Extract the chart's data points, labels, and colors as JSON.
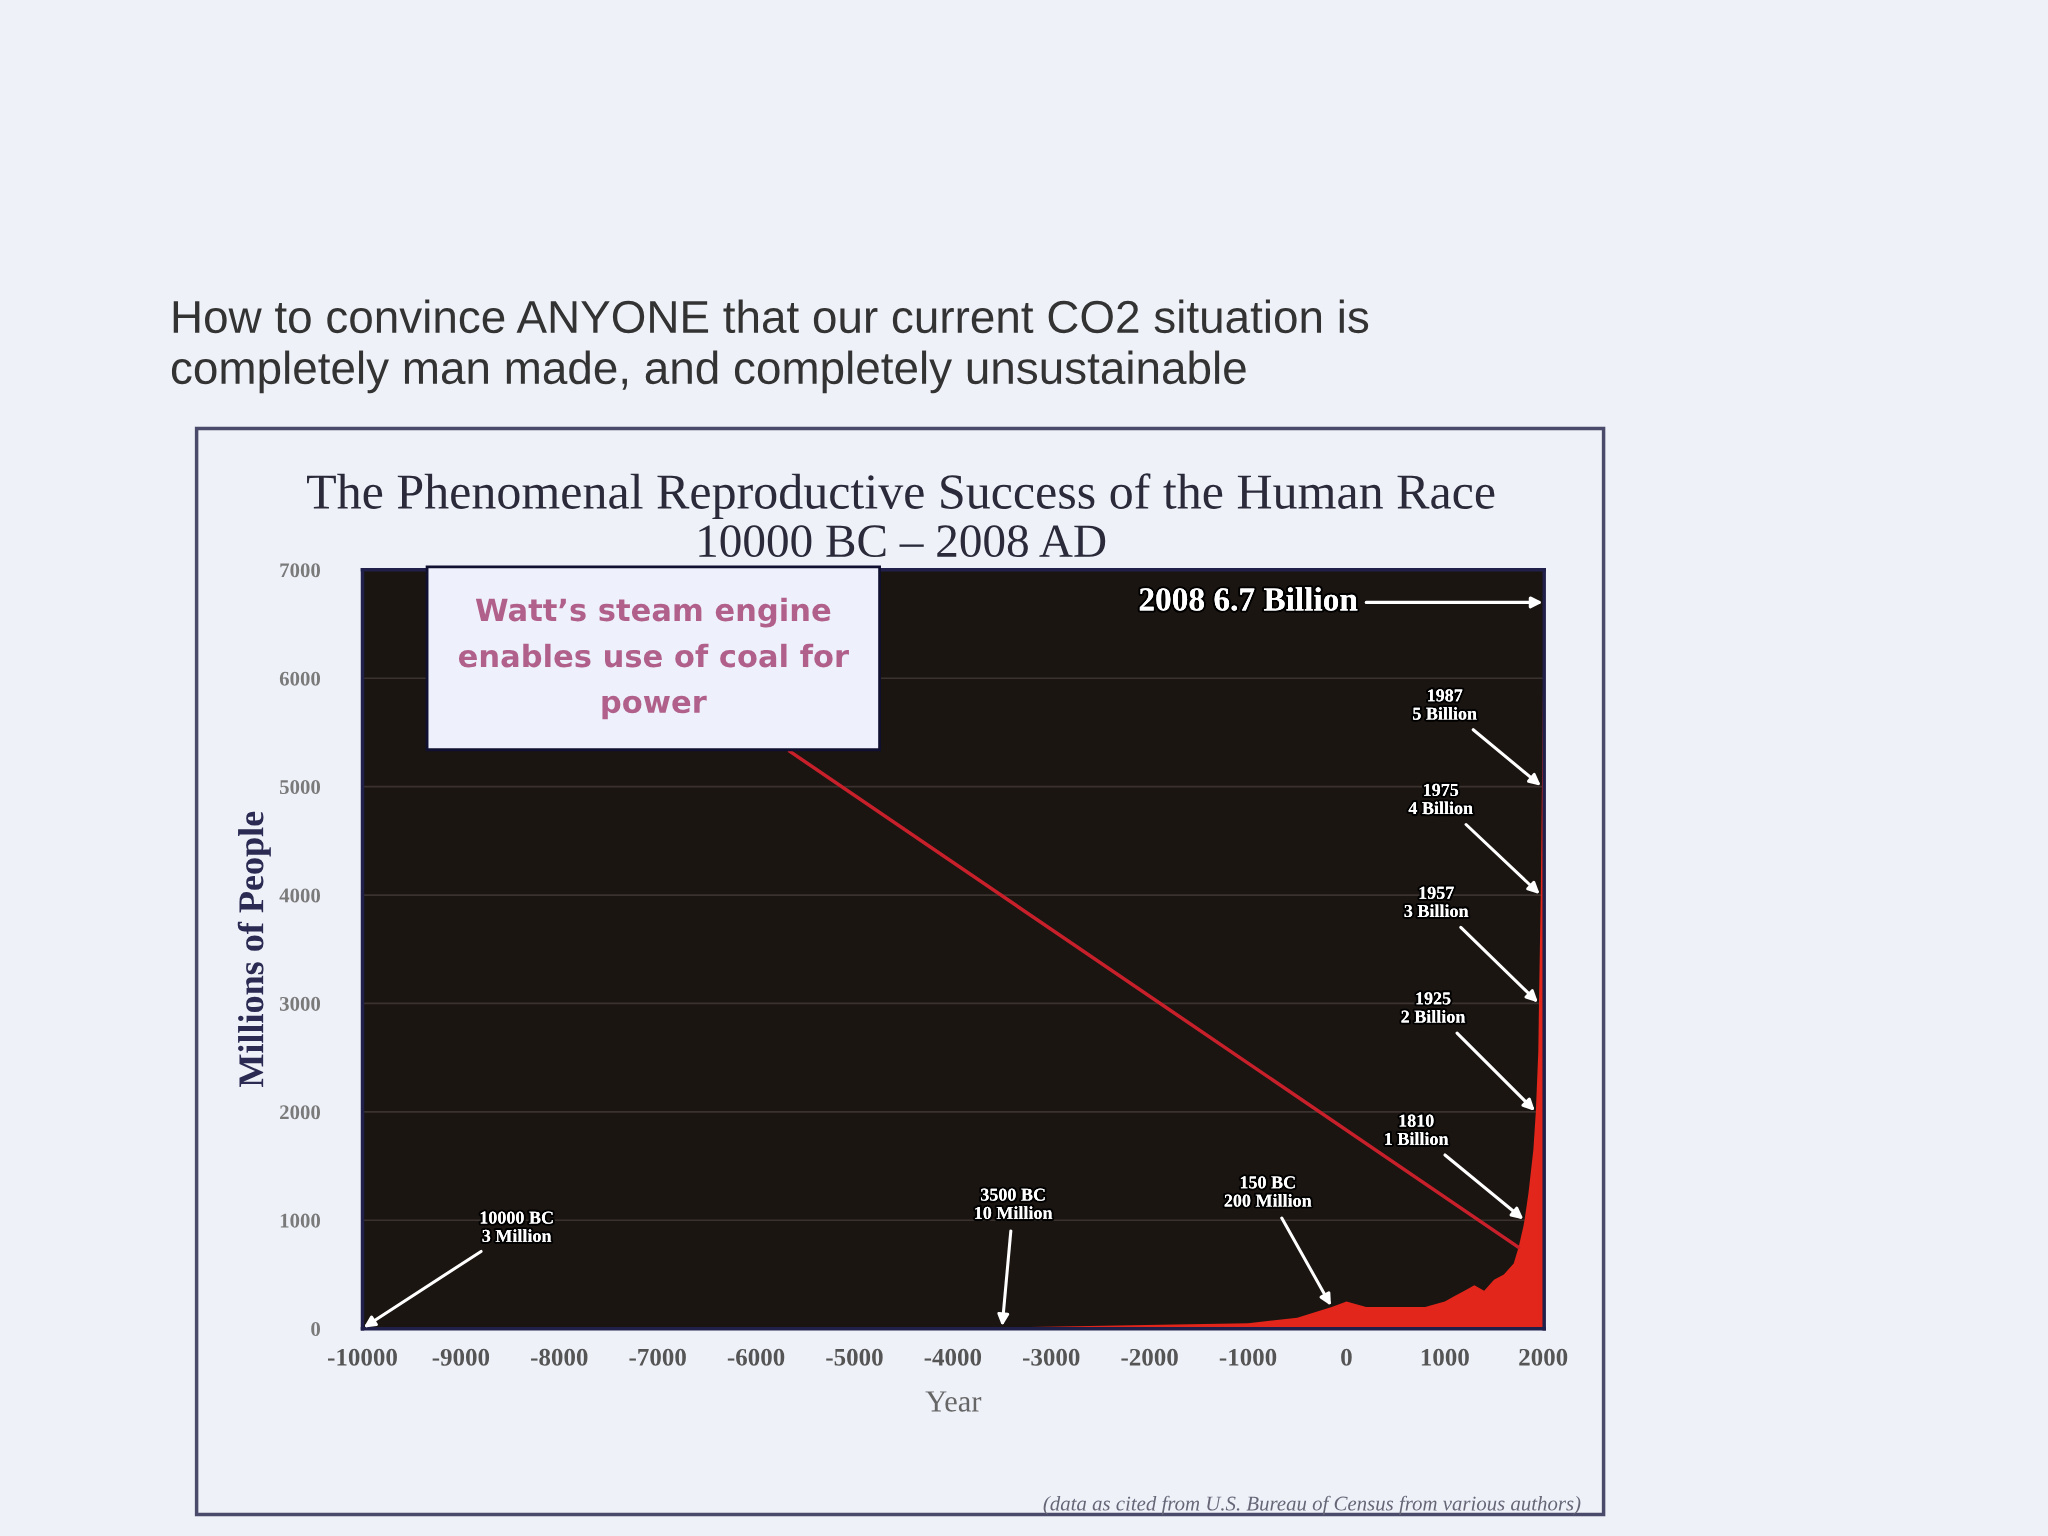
{
  "chart_data": {
    "type": "area",
    "title": "The Phenomenal Reproductive Success of the Human Race",
    "subtitle": "10000 BC – 2008 AD",
    "xlabel": "Year",
    "ylabel": "Millions of People",
    "x": [
      -10000,
      -3500,
      -1000,
      -500,
      -150,
      1,
      200,
      400,
      600,
      800,
      1000,
      1100,
      1200,
      1300,
      1400,
      1500,
      1600,
      1700,
      1750,
      1800,
      1810,
      1850,
      1900,
      1925,
      1950,
      1957,
      1975,
      1987,
      2000,
      2008
    ],
    "values": [
      3,
      10,
      50,
      100,
      200,
      250,
      200,
      200,
      200,
      200,
      250,
      300,
      350,
      400,
      350,
      450,
      500,
      600,
      750,
      950,
      1000,
      1250,
      1650,
      2000,
      2550,
      3000,
      4000,
      5000,
      6100,
      6700
    ],
    "color": "#e3261b",
    "xlim": [
      -10000,
      2010
    ],
    "xticks": [
      -10000,
      -9000,
      -8000,
      -7000,
      -6000,
      -5000,
      -4000,
      -3000,
      -2000,
      -1000,
      0,
      1000,
      2000
    ],
    "ylim": [
      0,
      7000
    ],
    "yticks": [
      0,
      1000,
      2000,
      3000,
      4000,
      5000,
      6000,
      7000
    ],
    "grid": "y",
    "annotations": [
      "How to convince ANYONE that our current CO2 situation is\ncompletely man made, and completely unsustainable",
      {
        "text": "Watt’s steam engine\nenables use of coal for\npower",
        "x": 1750,
        "y": 750
      },
      {
        "text": "10000 BC\n3 Million",
        "x": -10000,
        "y": 3
      },
      {
        "text": "3500 BC\n10 Million",
        "x": -3500,
        "y": 10
      },
      {
        "text": "150 BC\n200 Million",
        "x": -150,
        "y": 200
      },
      {
        "text": "1810\n1 Billion",
        "x": 1810,
        "y": 1000
      },
      {
        "text": "1925\n2 Billion",
        "x": 1925,
        "y": 2000
      },
      {
        "text": "1957\n3 Billion",
        "x": 1957,
        "y": 3000
      },
      {
        "text": "1975\n4 Billion",
        "x": 1975,
        "y": 4000
      },
      {
        "text": "1987\n5 Billion",
        "x": 1987,
        "y": 5000
      },
      {
        "text": "2008 6.7 Billion",
        "x": 2008,
        "y": 6700
      },
      "(data as cited from U.S. Bureau of Census from various authors)"
    ]
  }
}
